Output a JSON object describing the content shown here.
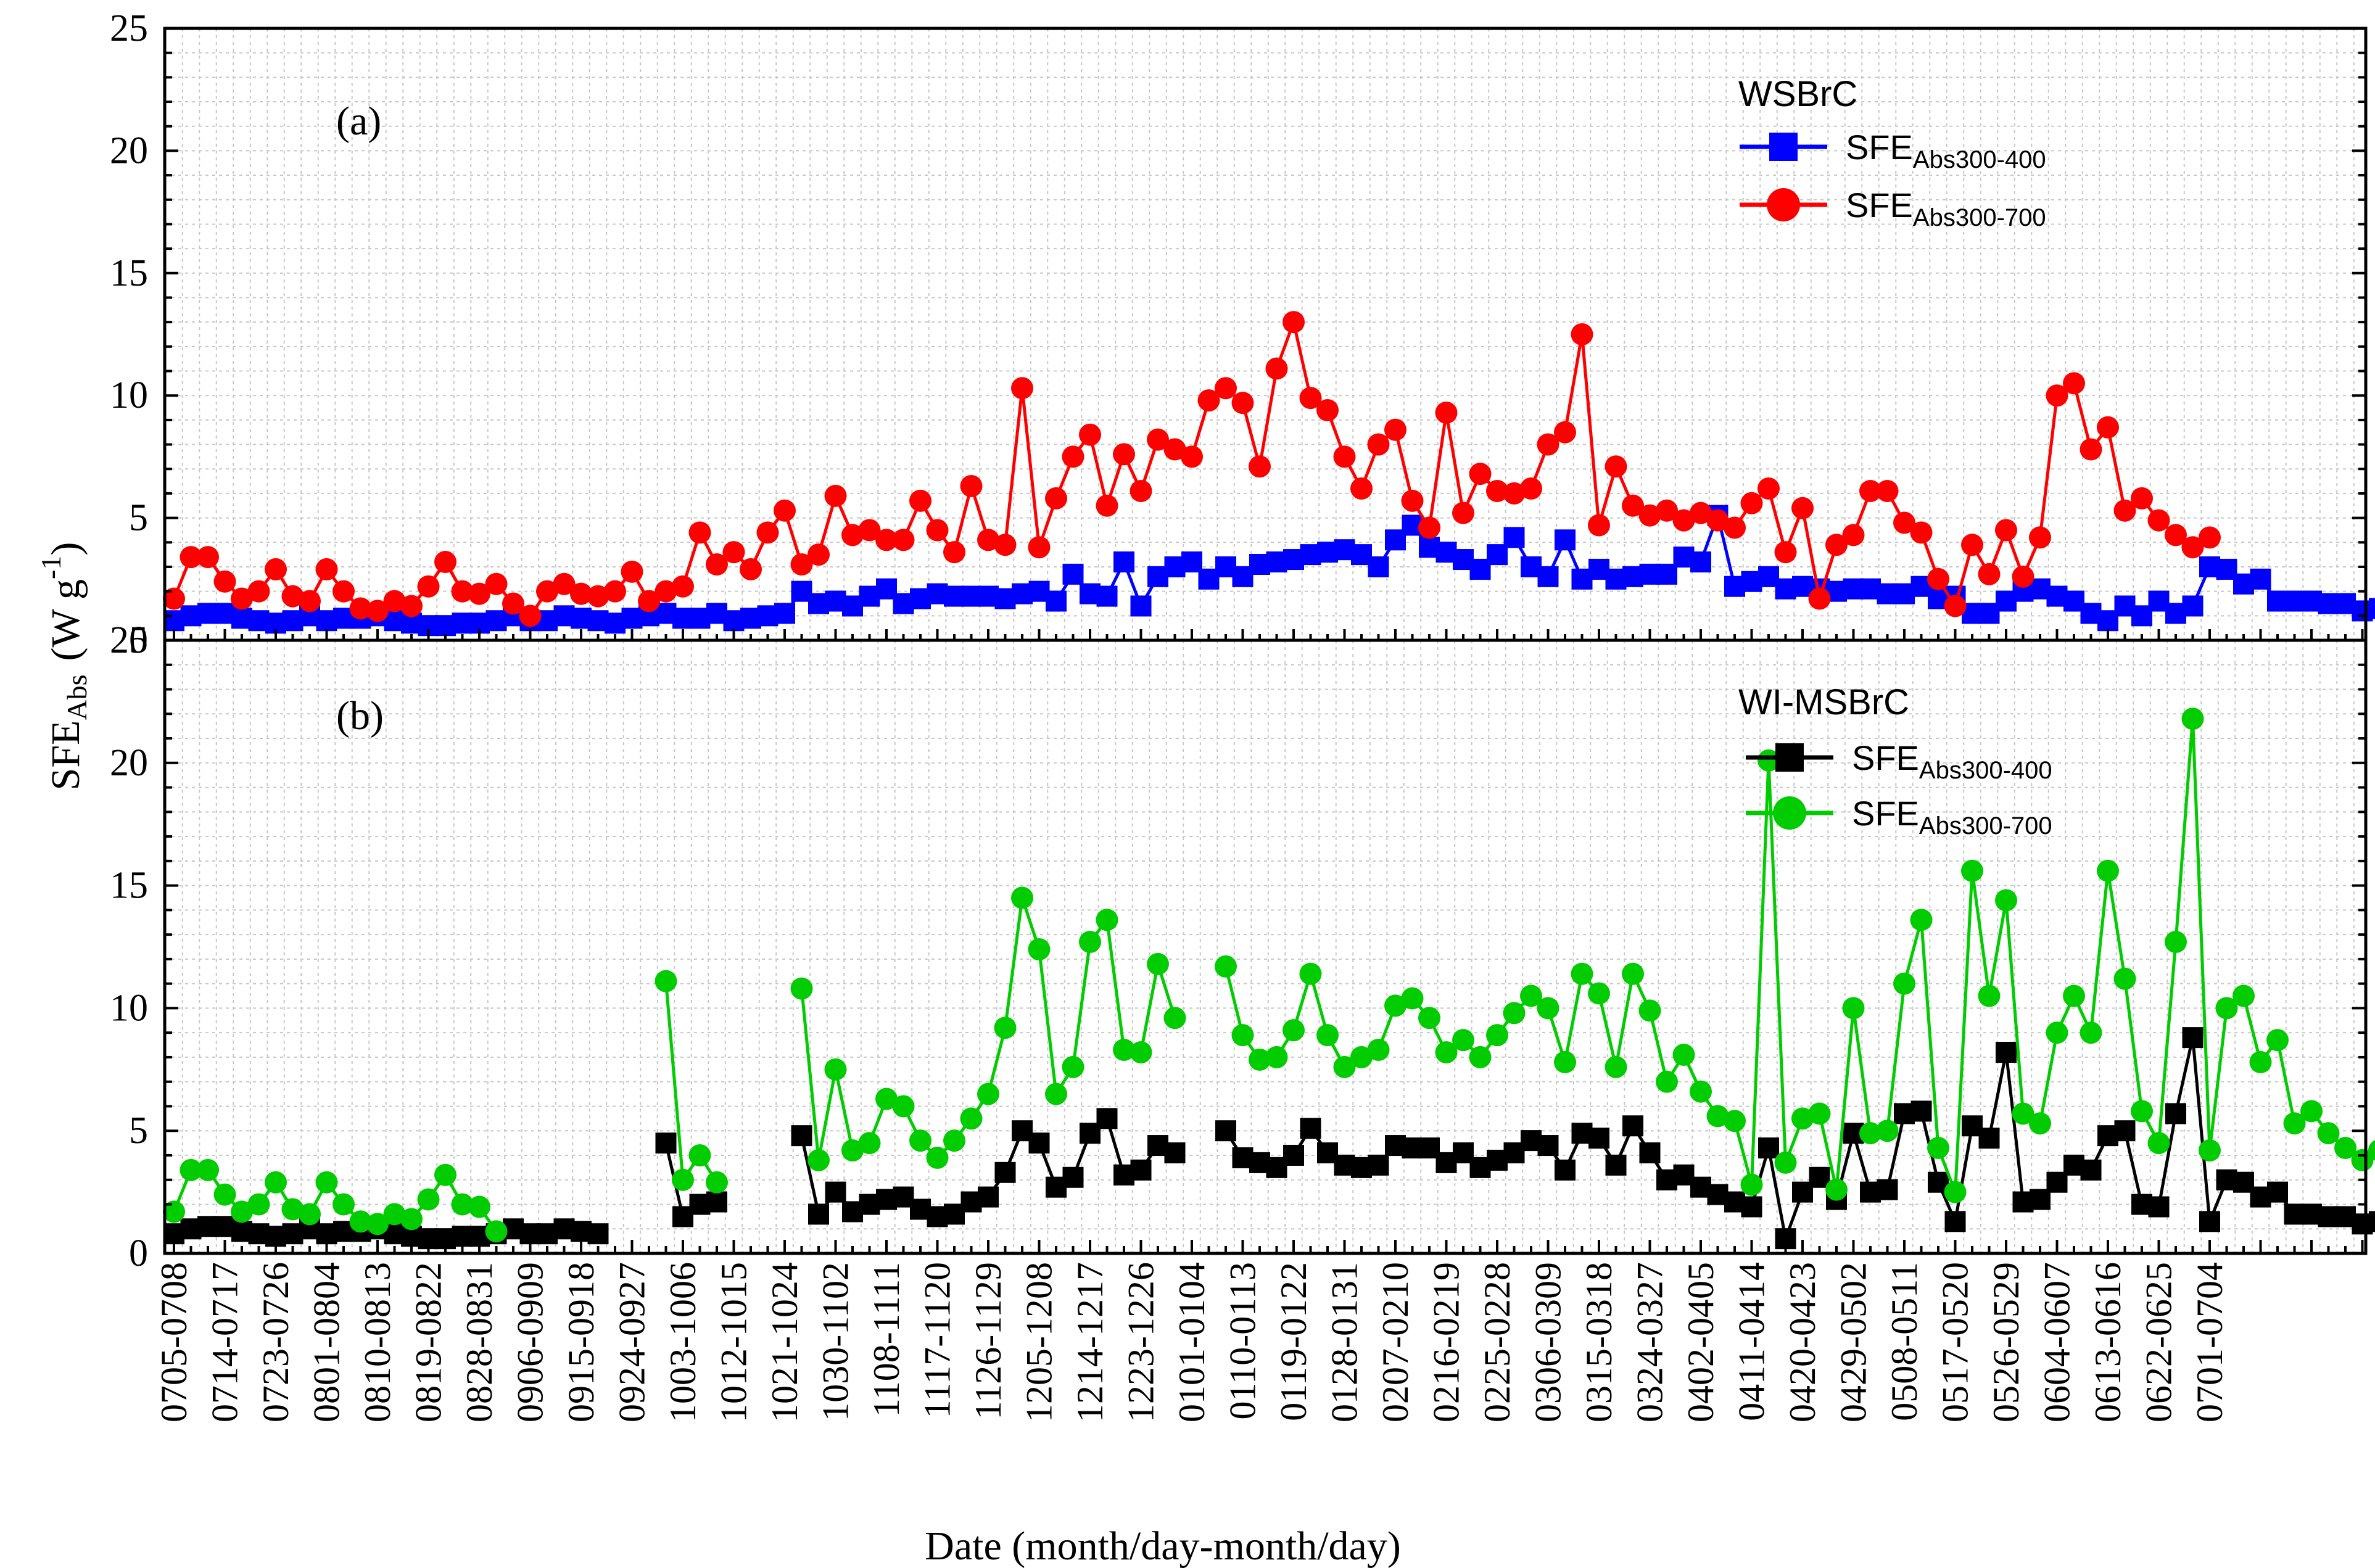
{
  "chart_data": {
    "type": "line",
    "xlabel": "Date (month/day-month/day)",
    "ylabel": {
      "main": "SFE",
      "sub": "Abs",
      "unit_open": "(W g",
      "unit_sup": "-1",
      "unit_close": ")"
    },
    "x_tick_labels": [
      "0705-0708",
      "0714-0717",
      "0723-0726",
      "0801-0804",
      "0810-0813",
      "0819-0822",
      "0828-0831",
      "0906-0909",
      "0915-0918",
      "0924-0927",
      "1003-1006",
      "1012-1015",
      "1021-1024",
      "1030-1102",
      "1108-1111",
      "1117-1120",
      "1126-1129",
      "1205-1208",
      "1214-1217",
      "1223-1226",
      "0101-0104",
      "0110-0113",
      "0119-0122",
      "0128-0131",
      "0207-0210",
      "0216-0219",
      "0225-0228",
      "0306-0309",
      "0315-0318",
      "0324-0327",
      "0402-0405",
      "0411-0414",
      "0420-0423",
      "0429-0502",
      "0508-0511",
      "0517-0520",
      "0526-0529",
      "0604-0607",
      "0613-0616",
      "0622-0625",
      "0701-0704"
    ],
    "y_ticks": [
      "0",
      "5",
      "10",
      "15",
      "20",
      "25"
    ],
    "ylim": [
      0,
      25
    ],
    "grid": true,
    "panels": [
      {
        "label": "(a)",
        "legend_title": "WSBrC",
        "legend_position": "top-right",
        "series": [
          {
            "name_main": "SFE",
            "name_sub": "Abs300-400",
            "color": "#0000ff",
            "marker": "square",
            "segments": [
              {
                "start": 0,
                "values": [
                  0.8,
                  1.0,
                  1.1,
                  1.1,
                  0.9,
                  0.8,
                  0.7,
                  0.8,
                  1.0,
                  0.8,
                  0.9,
                  0.9,
                  1.0,
                  0.8,
                  0.7,
                  0.6,
                  0.6,
                  0.7,
                  0.7,
                  0.8,
                  1.0,
                  0.8,
                  0.8,
                  1.0,
                  0.9,
                  0.8,
                  0.7,
                  0.9,
                  1.0,
                  1.1,
                  0.9,
                  0.9,
                  1.1,
                  0.8,
                  0.9,
                  1.0,
                  1.1,
                  2.0,
                  1.5,
                  1.6,
                  1.4,
                  1.8,
                  2.1,
                  1.5,
                  1.7,
                  1.9,
                  1.8,
                  1.8,
                  1.8,
                  1.7,
                  1.9,
                  2.0,
                  1.6,
                  2.7,
                  1.9,
                  1.8,
                  3.2,
                  1.4,
                  2.6,
                  3.0,
                  3.2,
                  2.5,
                  3.0,
                  2.6,
                  3.1,
                  3.2,
                  3.3,
                  3.5,
                  3.6,
                  3.7,
                  3.5,
                  3.0,
                  4.1,
                  4.7,
                  3.8,
                  3.6,
                  3.3,
                  2.9,
                  3.5,
                  4.2,
                  3.0,
                  2.6,
                  4.1,
                  2.5,
                  2.9,
                  2.5,
                  2.6,
                  2.7,
                  2.7,
                  3.4,
                  3.2,
                  5.1,
                  2.2,
                  2.4,
                  2.6,
                  2.1,
                  2.2,
                  2.1,
                  2.0,
                  2.1,
                  2.1,
                  1.9,
                  1.9,
                  2.2,
                  1.7,
                  1.8,
                  1.1,
                  1.1,
                  1.6,
                  2.0,
                  2.1,
                  1.8,
                  1.6,
                  1.1,
                  0.8,
                  1.4,
                  1.0,
                  1.6,
                  1.1,
                  1.4,
                  3.0,
                  2.9,
                  2.3,
                  2.5,
                  1.6,
                  1.6,
                  1.6,
                  1.5,
                  1.5,
                  1.2,
                  1.3
                ]
              }
            ]
          },
          {
            "name_main": "SFE",
            "name_sub": "Abs300-700",
            "color": "#ff0000",
            "marker": "circle",
            "segments": [
              {
                "start": 0,
                "values": [
                  1.7,
                  3.4,
                  3.4,
                  2.4,
                  1.7,
                  2.0,
                  2.9,
                  1.8,
                  1.6,
                  2.9,
                  2.0,
                  1.3,
                  1.2,
                  1.6,
                  1.4,
                  2.2,
                  3.2,
                  2.0,
                  1.9,
                  2.3,
                  1.5,
                  1.0,
                  2.0,
                  2.3,
                  1.9,
                  1.8,
                  2.0,
                  2.8,
                  1.6,
                  2.0,
                  2.2,
                  4.4,
                  3.1,
                  3.6,
                  2.9,
                  4.4,
                  5.3,
                  3.1,
                  3.5,
                  5.9,
                  4.3,
                  4.5,
                  4.1,
                  4.1,
                  5.7,
                  4.5,
                  3.6,
                  6.3,
                  4.1,
                  3.9,
                  10.3,
                  3.8,
                  5.8,
                  7.5,
                  8.4,
                  5.5,
                  7.6,
                  6.1,
                  8.2,
                  7.8,
                  7.5,
                  9.8,
                  10.3,
                  9.7,
                  7.1,
                  11.1,
                  13.0,
                  9.9,
                  9.4,
                  7.5,
                  6.2,
                  8.0,
                  8.6,
                  5.7,
                  4.6,
                  9.3,
                  5.2,
                  6.8,
                  6.1,
                  6.0,
                  6.2,
                  8.0,
                  8.5,
                  12.5,
                  4.7,
                  7.1,
                  5.5,
                  5.1,
                  5.3,
                  4.9,
                  5.2,
                  4.9,
                  4.6,
                  5.6,
                  6.2,
                  3.6,
                  5.4,
                  1.7,
                  3.9,
                  4.3,
                  6.1,
                  6.1,
                  4.8,
                  4.4,
                  2.5,
                  1.4,
                  3.9,
                  2.7,
                  4.5,
                  2.6,
                  4.2,
                  10.0,
                  10.5,
                  7.8,
                  8.7,
                  5.3,
                  5.8,
                  4.9,
                  4.3,
                  3.8,
                  4.2
                ]
              }
            ]
          }
        ]
      },
      {
        "label": "(b)",
        "legend_title": "WI-MSBrC",
        "legend_position": "top-right",
        "series": [
          {
            "name_main": "SFE",
            "name_sub": "Abs300-400",
            "color": "#000000",
            "marker": "square",
            "segments": [
              {
                "start": 0,
                "values": [
                  0.8,
                  1.0,
                  1.1,
                  1.1,
                  0.9,
                  0.8,
                  0.7,
                  0.8,
                  1.0,
                  0.8,
                  0.9,
                  0.9,
                  1.0,
                  0.8,
                  0.7,
                  0.6,
                  0.6,
                  0.7,
                  0.7,
                  0.8,
                  1.0,
                  0.8,
                  0.8,
                  1.0,
                  0.9,
                  0.8
                ]
              },
              {
                "start": 29,
                "values": [
                  4.5,
                  1.5,
                  2.0,
                  2.1
                ]
              },
              {
                "start": 37,
                "values": [
                  4.8,
                  1.6,
                  2.5,
                  1.7,
                  2.0,
                  2.2,
                  2.3,
                  1.8,
                  1.5,
                  1.6,
                  2.1,
                  2.3,
                  3.3,
                  5.0,
                  4.5,
                  2.7,
                  3.1,
                  4.9,
                  5.5,
                  3.2,
                  3.4,
                  4.4,
                  4.1
                ]
              },
              {
                "start": 62,
                "values": [
                  5.0,
                  3.9,
                  3.7,
                  3.5,
                  4.0,
                  5.1,
                  4.1,
                  3.6,
                  3.5,
                  3.6,
                  4.4,
                  4.3,
                  4.3,
                  3.7,
                  4.1,
                  3.5,
                  3.8,
                  4.1,
                  4.6,
                  4.4,
                  3.4,
                  4.9,
                  4.7,
                  3.6,
                  5.2,
                  4.1,
                  3.0,
                  3.2,
                  2.7,
                  2.4,
                  2.1,
                  1.9,
                  4.3,
                  0.6,
                  2.5,
                  3.1,
                  2.2,
                  4.9,
                  2.5,
                  2.6,
                  5.7,
                  5.8,
                  2.9,
                  1.3,
                  5.2,
                  4.7,
                  8.2,
                  2.1,
                  2.2,
                  2.9,
                  3.6,
                  3.4,
                  4.8,
                  5.0,
                  2.0,
                  1.9,
                  5.7,
                  8.8,
                  1.3,
                  3.0,
                  2.9,
                  2.3,
                  2.5,
                  1.6,
                  1.6,
                  1.5,
                  1.5,
                  1.2,
                  1.3
                ]
              }
            ]
          },
          {
            "name_main": "SFE",
            "name_sub": "Abs300-700",
            "color": "#00cc00",
            "marker": "circle",
            "segments": [
              {
                "start": 0,
                "values": [
                  1.7,
                  3.4,
                  3.4,
                  2.4,
                  1.7,
                  2.0,
                  2.9,
                  1.8,
                  1.6,
                  2.9,
                  2.0,
                  1.3,
                  1.2,
                  1.6,
                  1.4,
                  2.2,
                  3.2,
                  2.0,
                  1.9,
                  0.9
                ]
              },
              {
                "start": 29,
                "values": [
                  11.1,
                  3.0,
                  4.0,
                  2.9
                ]
              },
              {
                "start": 37,
                "values": [
                  10.8,
                  3.8,
                  7.5,
                  4.2,
                  4.5,
                  6.3,
                  6.0,
                  4.6,
                  3.9,
                  4.6,
                  5.5,
                  6.5,
                  9.2,
                  14.5,
                  12.4,
                  6.5,
                  7.6,
                  12.7,
                  13.6,
                  8.3,
                  8.2,
                  11.8,
                  9.6
                ]
              },
              {
                "start": 62,
                "values": [
                  11.7,
                  8.9,
                  7.9,
                  8.0,
                  9.1,
                  11.4,
                  8.9,
                  7.6,
                  8.0,
                  8.3,
                  10.1,
                  10.4,
                  9.6,
                  8.2,
                  8.7,
                  8.0,
                  8.9,
                  9.8,
                  10.5,
                  10.0,
                  7.8,
                  11.4,
                  10.6,
                  7.6,
                  11.4,
                  9.9,
                  7.0,
                  8.1,
                  6.6,
                  5.6,
                  5.4,
                  2.8,
                  20.1,
                  3.7,
                  5.5,
                  5.7,
                  2.6,
                  10.0,
                  4.9,
                  5.0,
                  11.0,
                  13.6,
                  4.3,
                  2.5,
                  15.6,
                  10.5,
                  14.4,
                  5.7,
                  5.3,
                  9.0,
                  10.5,
                  9.0,
                  15.6,
                  11.2,
                  5.8,
                  4.5,
                  12.7,
                  21.8,
                  4.2,
                  10.0,
                  10.5,
                  7.8,
                  8.7,
                  5.3,
                  5.8,
                  4.9,
                  4.3,
                  3.8,
                  4.2
                ]
              }
            ]
          }
        ]
      }
    ]
  }
}
